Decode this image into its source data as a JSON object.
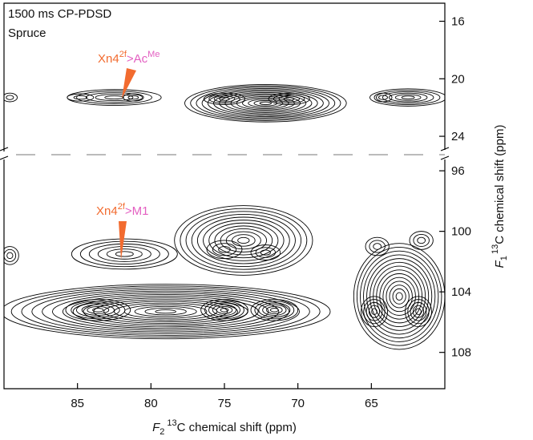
{
  "chart_data": {
    "type": "contour",
    "title": "1500 ms CP-PDSD",
    "subtitle": "Spruce",
    "contour_color": "#000000",
    "xlim": [
      90,
      60
    ],
    "xticks": [
      85,
      80,
      75,
      70,
      65
    ],
    "x_label": {
      "italic": "F",
      "sub": "2",
      "sup": "13",
      "text": "C chemical shift (ppm)"
    },
    "y_label": {
      "italic": "F",
      "sub": "1",
      "sup": "13",
      "text": "C chemical shift (ppm)"
    },
    "panels": [
      {
        "ylim": [
          14.8,
          25
        ],
        "yticks": [
          16,
          20,
          24
        ],
        "peaks": [
          {
            "x": 89.6,
            "y": 21.3,
            "dx": 0.5,
            "dy": 0.3,
            "levels": 2
          },
          {
            "x": 82.5,
            "y": 21.3,
            "dx": 3.2,
            "dy": 0.55,
            "levels": 5
          },
          {
            "x": 84.8,
            "y": 21.3,
            "dx": 0.9,
            "dy": 0.25,
            "levels": 2
          },
          {
            "x": 81.2,
            "y": 21.3,
            "dx": 0.7,
            "dy": 0.25,
            "levels": 2
          },
          {
            "x": 72.2,
            "y": 21.7,
            "dx": 5.5,
            "dy": 1.3,
            "levels": 14
          },
          {
            "x": 75,
            "y": 21.4,
            "dx": 1.4,
            "dy": 0.4,
            "levels": 4
          },
          {
            "x": 70.6,
            "y": 21.4,
            "dx": 1.4,
            "dy": 0.4,
            "levels": 4
          },
          {
            "x": 62.5,
            "y": 21.3,
            "dx": 2.6,
            "dy": 0.6,
            "levels": 6
          },
          {
            "x": 64.2,
            "y": 21.3,
            "dx": 0.6,
            "dy": 0.3,
            "levels": 2
          }
        ]
      },
      {
        "ylim": [
          95.2,
          110.4
        ],
        "yticks": [
          96,
          100,
          104,
          108
        ],
        "peaks": [
          {
            "x": 79,
            "y": 105.3,
            "dx": 11.2,
            "dy": 1.8,
            "levels": 16
          },
          {
            "x": 83.6,
            "y": 105.2,
            "dx": 2.2,
            "dy": 0.7,
            "levels": 6
          },
          {
            "x": 75,
            "y": 105.2,
            "dx": 1.6,
            "dy": 0.7,
            "levels": 6
          },
          {
            "x": 71.6,
            "y": 105.2,
            "dx": 1.6,
            "dy": 0.7,
            "levels": 6
          },
          {
            "x": 89.6,
            "y": 101.6,
            "dx": 0.6,
            "dy": 0.6,
            "levels": 3
          },
          {
            "x": 81.8,
            "y": 101.5,
            "dx": 3.6,
            "dy": 1.0,
            "levels": 6
          },
          {
            "x": 73.7,
            "y": 100.6,
            "dx": 4.7,
            "dy": 2.3,
            "levels": 12
          },
          {
            "x": 75,
            "y": 101.2,
            "dx": 1.2,
            "dy": 0.6,
            "levels": 3
          },
          {
            "x": 72.2,
            "y": 101.4,
            "dx": 1.0,
            "dy": 0.5,
            "levels": 3
          },
          {
            "x": 63.1,
            "y": 104.3,
            "dx": 3.1,
            "dy": 3.5,
            "levels": 14
          },
          {
            "x": 64.8,
            "y": 105.3,
            "dx": 0.9,
            "dy": 1.0,
            "levels": 5
          },
          {
            "x": 61.8,
            "y": 105.3,
            "dx": 0.9,
            "dy": 1.0,
            "levels": 5
          },
          {
            "x": 64.6,
            "y": 101,
            "dx": 0.8,
            "dy": 0.6,
            "levels": 3
          },
          {
            "x": 61.6,
            "y": 100.6,
            "dx": 0.8,
            "dy": 0.6,
            "levels": 3
          }
        ]
      }
    ],
    "annotations": [
      {
        "parts": [
          "Xn4",
          "2f",
          ">Ac",
          "Me"
        ],
        "colors": [
          "#f26b2f",
          "#f26b2f",
          "#e35fc1",
          "#e35fc1"
        ]
      },
      {
        "parts": [
          "Xn4",
          "2f",
          ">M1"
        ],
        "colors": [
          "#f26b2f",
          "#f26b2f",
          "#e35fc1"
        ]
      }
    ]
  }
}
